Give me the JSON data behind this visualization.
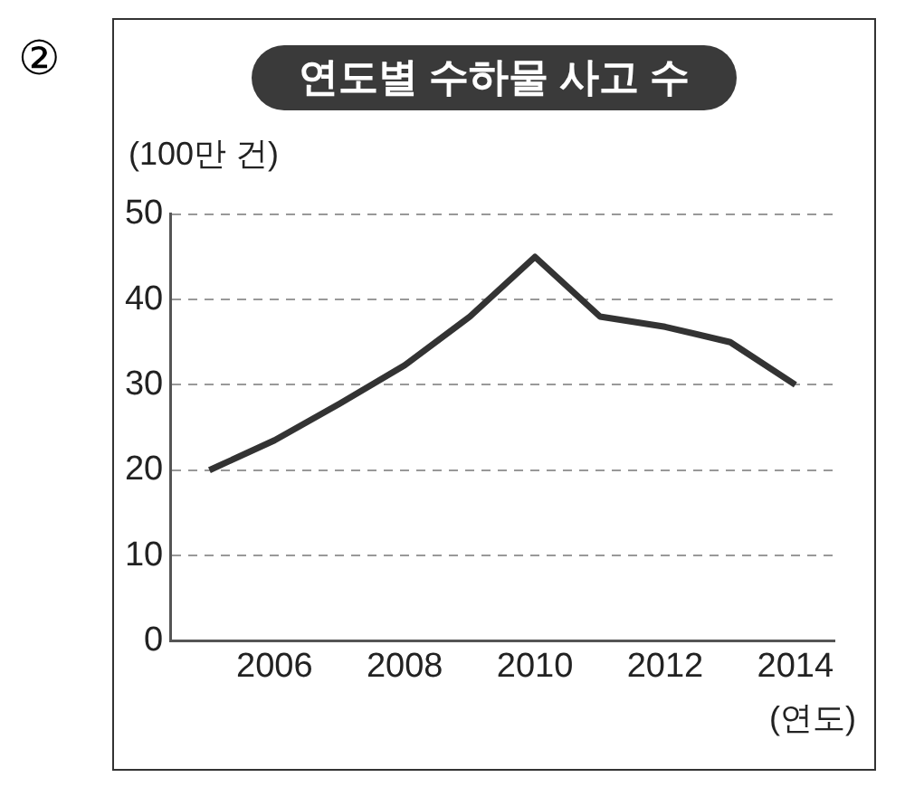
{
  "chart_data": {
    "type": "line",
    "title": "연도별 수하물 사고 수",
    "ylabel": "(100만 건)",
    "xlabel": "(연도)",
    "annotations": [
      "②"
    ],
    "x": [
      2005,
      2006,
      2007,
      2008,
      2009,
      2010,
      2011,
      2012,
      2013,
      2014
    ],
    "series": [
      {
        "color": "#333333",
        "values": [
          20,
          23.5,
          27.8,
          32.3,
          38,
          45,
          38,
          36.8,
          35,
          30
        ]
      }
    ],
    "xlim": [
      2004.4,
      2014.6
    ],
    "xticks": [
      2006,
      2008,
      2010,
      2012,
      2014
    ],
    "ylim": [
      0,
      50
    ],
    "yticks": [
      0,
      10,
      20,
      30,
      40,
      50
    ],
    "grid": "y",
    "line_style": "solid",
    "marker": "none",
    "legend": false
  }
}
